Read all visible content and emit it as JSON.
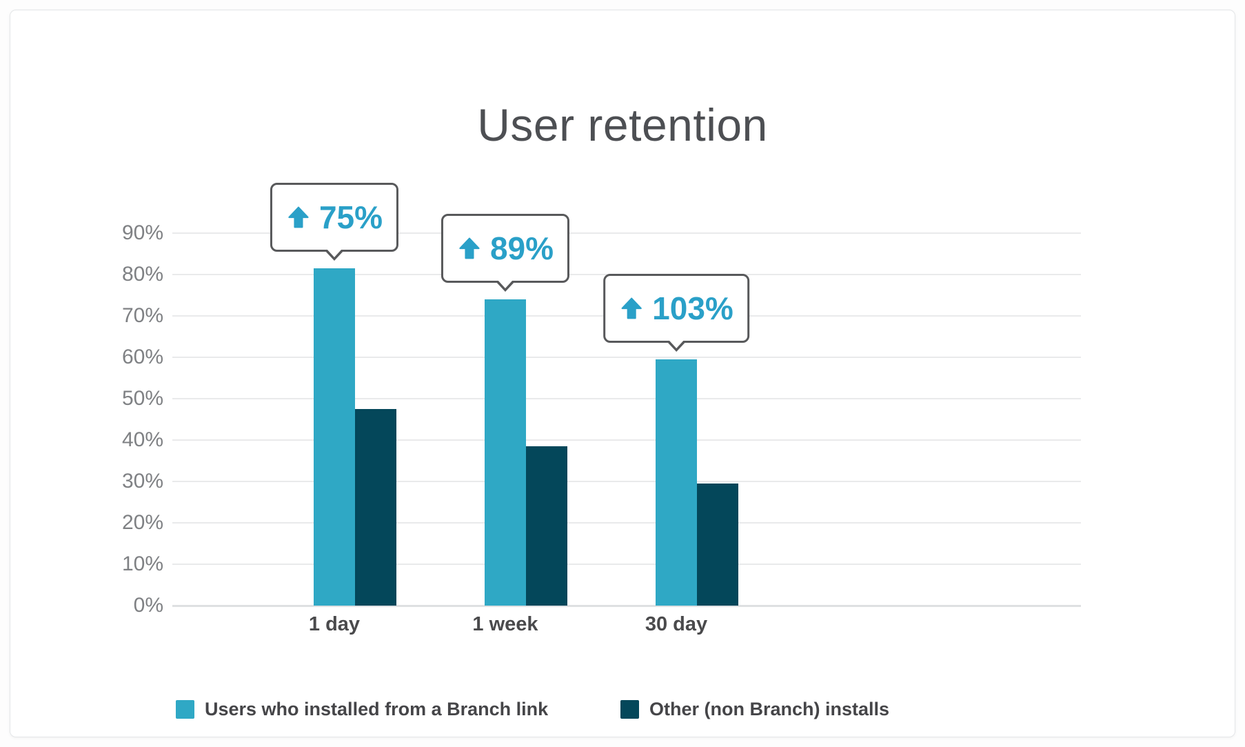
{
  "chart_data": {
    "type": "bar",
    "title": "User retention",
    "categories": [
      "1 day",
      "1 week",
      "30 day"
    ],
    "series": [
      {
        "name": "Users who installed from a Branch link",
        "color": "#2FA8C5",
        "values": [
          81.5,
          74,
          59.5
        ]
      },
      {
        "name": "Other (non Branch) installs",
        "color": "#04475A",
        "values": [
          47.5,
          38.5,
          29.5
        ]
      }
    ],
    "callouts": [
      {
        "category": "1 day",
        "text": "75%",
        "icon": "up-arrow"
      },
      {
        "category": "1 week",
        "text": "89%",
        "icon": "up-arrow"
      },
      {
        "category": "30 day",
        "text": "103%",
        "icon": "up-arrow"
      }
    ],
    "y_ticks": [
      "0%",
      "10%",
      "20%",
      "30%",
      "40%",
      "50%",
      "60%",
      "70%",
      "80%",
      "90%"
    ],
    "ylim": [
      0,
      90
    ],
    "grid": true,
    "legend_position": "bottom",
    "colors": {
      "callout_text": "#2AA0C8",
      "callout_border": "#58595B",
      "axis_label": "#7F8184",
      "category_label": "#4A4A4C",
      "legend_text": "#454548",
      "gridline": "#E9EAEB",
      "baseline": "#DEE0E2",
      "title": "#4D4F53"
    }
  }
}
